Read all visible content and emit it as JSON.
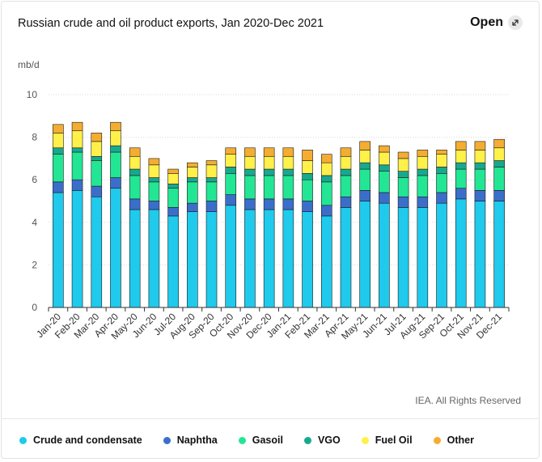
{
  "header": {
    "title": "Russian crude and oil product exports, Jan 2020-Dec 2021",
    "open_label": "Open",
    "open_icon": "expand-icon"
  },
  "footer": {
    "credit": "IEA. All Rights Reserved"
  },
  "legend": {
    "items": [
      {
        "label": "Crude and condensate",
        "color": "#1fcaec"
      },
      {
        "label": "Naphtha",
        "color": "#3b6ecb"
      },
      {
        "label": "Gasoil",
        "color": "#22e694"
      },
      {
        "label": "VGO",
        "color": "#17a98f"
      },
      {
        "label": "Fuel Oil",
        "color": "#fff04a"
      },
      {
        "label": "Other",
        "color": "#f4ad32"
      }
    ]
  },
  "chart_data": {
    "type": "bar",
    "stacked": true,
    "title": "Russian crude and oil product exports, Jan 2020-Dec 2021",
    "ylabel": "mb/d",
    "xlabel": "",
    "ylim": [
      0,
      10
    ],
    "yticks": [
      0,
      2,
      4,
      6,
      8,
      10
    ],
    "grid": true,
    "categories": [
      "Jan-20",
      "Feb-20",
      "Mar-20",
      "Apr-20",
      "May-20",
      "Jun-20",
      "Jul-20",
      "Aug-20",
      "Sep-20",
      "Oct-20",
      "Nov-20",
      "Dec-20",
      "Jan-21",
      "Feb-21",
      "Mar-21",
      "Apr-21",
      "May-21",
      "Jun-21",
      "Jul-21",
      "Aug-21",
      "Sep-21",
      "Oct-21",
      "Nov-21",
      "Dec-21"
    ],
    "series": [
      {
        "name": "Crude and condensate",
        "color": "#1fcaec",
        "values": [
          5.4,
          5.5,
          5.2,
          5.6,
          4.6,
          4.6,
          4.3,
          4.5,
          4.5,
          4.8,
          4.6,
          4.6,
          4.6,
          4.5,
          4.3,
          4.7,
          5.0,
          4.9,
          4.7,
          4.7,
          4.9,
          5.1,
          5.0,
          5.0
        ]
      },
      {
        "name": "Naphtha",
        "color": "#3b6ecb",
        "values": [
          0.5,
          0.5,
          0.5,
          0.5,
          0.5,
          0.4,
          0.4,
          0.4,
          0.5,
          0.5,
          0.5,
          0.5,
          0.5,
          0.5,
          0.5,
          0.5,
          0.5,
          0.5,
          0.5,
          0.5,
          0.5,
          0.5,
          0.5,
          0.5
        ]
      },
      {
        "name": "Gasoil",
        "color": "#22e694",
        "values": [
          1.3,
          1.3,
          1.2,
          1.2,
          1.1,
          0.9,
          0.9,
          1.0,
          0.9,
          1.0,
          1.1,
          1.1,
          1.1,
          1.0,
          1.1,
          1.0,
          1.0,
          1.0,
          0.9,
          1.0,
          0.9,
          0.9,
          1.0,
          1.1
        ]
      },
      {
        "name": "VGO",
        "color": "#17a98f",
        "values": [
          0.3,
          0.2,
          0.2,
          0.3,
          0.3,
          0.2,
          0.2,
          0.2,
          0.2,
          0.3,
          0.3,
          0.3,
          0.3,
          0.3,
          0.3,
          0.3,
          0.3,
          0.3,
          0.3,
          0.3,
          0.3,
          0.3,
          0.3,
          0.3
        ]
      },
      {
        "name": "Fuel Oil",
        "color": "#fff04a",
        "values": [
          0.7,
          0.8,
          0.7,
          0.7,
          0.6,
          0.6,
          0.5,
          0.5,
          0.6,
          0.6,
          0.6,
          0.6,
          0.6,
          0.6,
          0.6,
          0.6,
          0.6,
          0.6,
          0.6,
          0.6,
          0.6,
          0.6,
          0.6,
          0.6
        ]
      },
      {
        "name": "Other",
        "color": "#f4ad32",
        "values": [
          0.4,
          0.4,
          0.4,
          0.4,
          0.4,
          0.3,
          0.2,
          0.2,
          0.2,
          0.3,
          0.4,
          0.4,
          0.4,
          0.5,
          0.4,
          0.4,
          0.4,
          0.3,
          0.3,
          0.3,
          0.2,
          0.4,
          0.4,
          0.4
        ]
      }
    ]
  }
}
